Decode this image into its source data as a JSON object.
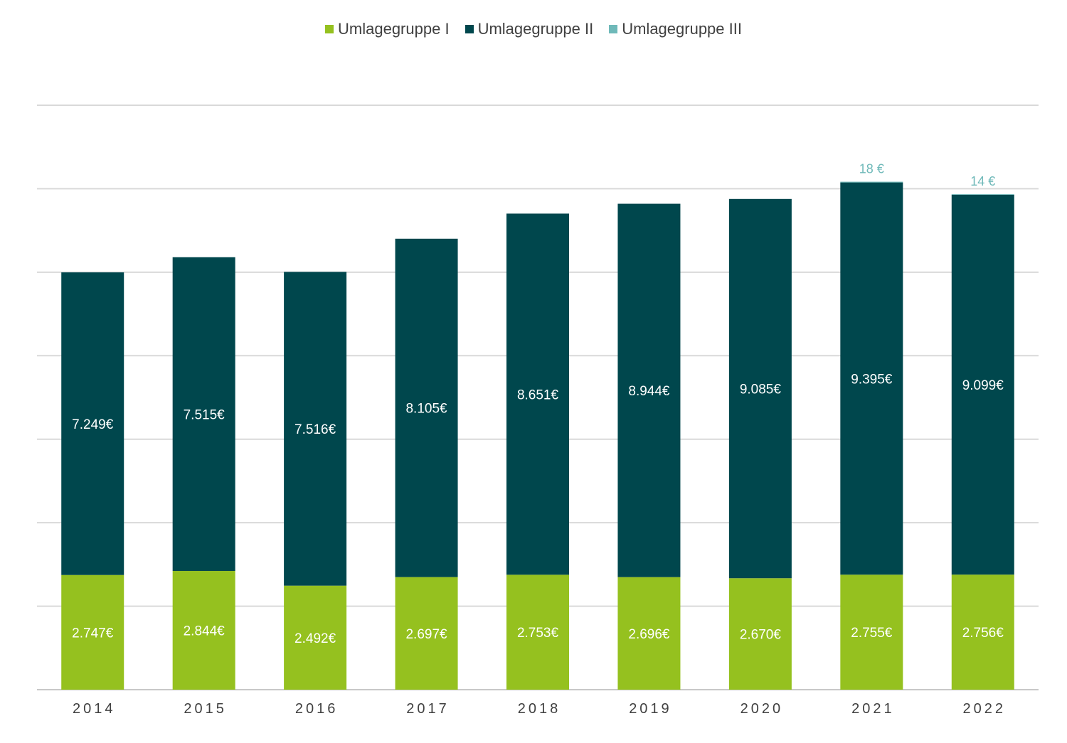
{
  "chart_data": {
    "type": "bar",
    "stacked": true,
    "categories": [
      "2014",
      "2015",
      "2016",
      "2017",
      "2018",
      "2019",
      "2020",
      "2021",
      "2022"
    ],
    "series": [
      {
        "name": "Umlagegruppe I",
        "color": "#95c11f",
        "values": [
          2747,
          2844,
          2492,
          2697,
          2753,
          2696,
          2670,
          2755,
          2756
        ],
        "labels": [
          "2.747€",
          "2.844€",
          "2.492€",
          "2.697€",
          "2.753€",
          "2.696€",
          "2.670€",
          "2.755€",
          "2.756€"
        ]
      },
      {
        "name": "Umlagegruppe II",
        "color": "#00474d",
        "values": [
          7249,
          7515,
          7516,
          8105,
          8651,
          8944,
          9085,
          9395,
          9099
        ],
        "labels": [
          "7.249€",
          "7.515€",
          "7.516€",
          "8.105€",
          "8.651€",
          "8.944€",
          "9.085€",
          "9.395€",
          "9.099€"
        ]
      },
      {
        "name": "Umlagegruppe III",
        "color": "#6fb9b9",
        "values": [
          0,
          0,
          0,
          0,
          0,
          0,
          0,
          18,
          14
        ],
        "labels": [
          "",
          "",
          "",
          "",
          "",
          "",
          "",
          "18 €",
          "14 €"
        ]
      }
    ],
    "ylim": [
      0,
      14000
    ],
    "gridline_step": 2000,
    "grid": true,
    "legend_position": "top-center"
  }
}
